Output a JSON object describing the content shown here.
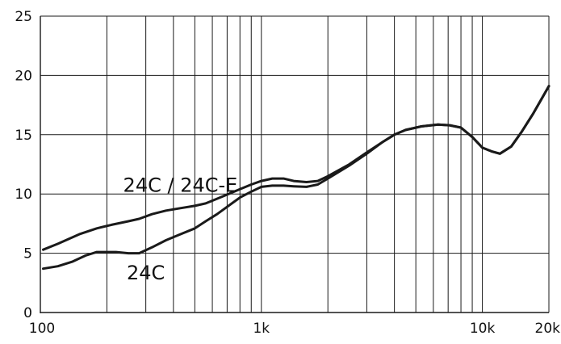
{
  "chart_data": {
    "type": "line",
    "x_scale": "log",
    "xlim": [
      100,
      20000
    ],
    "ylim": [
      0,
      25
    ],
    "grid": true,
    "x_gridlines": [
      100,
      200,
      300,
      400,
      500,
      600,
      700,
      800,
      900,
      1000,
      2000,
      3000,
      4000,
      5000,
      6000,
      7000,
      8000,
      9000,
      10000,
      20000
    ],
    "x_ticks": [
      {
        "value": 100,
        "label": "100"
      },
      {
        "value": 1000,
        "label": "1k"
      },
      {
        "value": 10000,
        "label": "10k"
      },
      {
        "value": 20000,
        "label": "20k"
      }
    ],
    "y_ticks": [
      {
        "value": 0,
        "label": "0"
      },
      {
        "value": 5,
        "label": "5"
      },
      {
        "value": 10,
        "label": "10"
      },
      {
        "value": 15,
        "label": "15"
      },
      {
        "value": 20,
        "label": "20"
      },
      {
        "value": 25,
        "label": "25"
      }
    ],
    "series": [
      {
        "name": "24C / 24C-E",
        "points": [
          [
            103,
            5.3
          ],
          [
            120,
            5.8
          ],
          [
            150,
            6.6
          ],
          [
            180,
            7.1
          ],
          [
            210,
            7.4
          ],
          [
            250,
            7.7
          ],
          [
            280,
            7.9
          ],
          [
            320,
            8.3
          ],
          [
            370,
            8.6
          ],
          [
            430,
            8.8
          ],
          [
            500,
            9.0
          ],
          [
            560,
            9.2
          ],
          [
            630,
            9.6
          ],
          [
            710,
            10.0
          ],
          [
            800,
            10.4
          ],
          [
            900,
            10.8
          ],
          [
            1000,
            11.1
          ],
          [
            1120,
            11.3
          ],
          [
            1260,
            11.3
          ],
          [
            1400,
            11.1
          ],
          [
            1600,
            11.0
          ],
          [
            1800,
            11.1
          ],
          [
            2000,
            11.5
          ],
          [
            2500,
            12.5
          ],
          [
            3000,
            13.5
          ],
          [
            3550,
            14.4
          ],
          [
            4000,
            15.0
          ],
          [
            4500,
            15.4
          ],
          [
            5300,
            15.7
          ],
          [
            6300,
            15.85
          ],
          [
            7100,
            15.8
          ],
          [
            8000,
            15.6
          ],
          [
            9000,
            14.8
          ],
          [
            10000,
            13.9
          ],
          [
            11000,
            13.6
          ],
          [
            12000,
            13.4
          ],
          [
            13500,
            14.0
          ],
          [
            15000,
            15.2
          ],
          [
            17000,
            16.8
          ],
          [
            20000,
            19.1
          ]
        ]
      },
      {
        "name": "24C",
        "points": [
          [
            103,
            3.7
          ],
          [
            120,
            3.9
          ],
          [
            140,
            4.3
          ],
          [
            160,
            4.8
          ],
          [
            180,
            5.1
          ],
          [
            200,
            5.1
          ],
          [
            220,
            5.1
          ],
          [
            250,
            5.0
          ],
          [
            280,
            5.0
          ],
          [
            320,
            5.5
          ],
          [
            370,
            6.1
          ],
          [
            430,
            6.6
          ],
          [
            500,
            7.1
          ],
          [
            560,
            7.7
          ],
          [
            630,
            8.3
          ],
          [
            710,
            9.0
          ],
          [
            800,
            9.7
          ],
          [
            900,
            10.2
          ],
          [
            1000,
            10.6
          ],
          [
            1120,
            10.7
          ],
          [
            1260,
            10.7
          ],
          [
            1400,
            10.65
          ],
          [
            1600,
            10.6
          ],
          [
            1800,
            10.8
          ],
          [
            2000,
            11.3
          ],
          [
            2500,
            12.4
          ],
          [
            3000,
            13.4
          ],
          [
            3550,
            14.4
          ],
          [
            4000,
            15.0
          ],
          [
            4500,
            15.4
          ],
          [
            5300,
            15.7
          ],
          [
            6300,
            15.85
          ],
          [
            7100,
            15.8
          ],
          [
            8000,
            15.6
          ],
          [
            9000,
            14.8
          ],
          [
            10000,
            13.9
          ],
          [
            11000,
            13.6
          ],
          [
            12000,
            13.4
          ],
          [
            13500,
            14.0
          ],
          [
            15000,
            15.2
          ],
          [
            17000,
            16.8
          ],
          [
            20000,
            19.1
          ]
        ]
      }
    ],
    "annotations": [
      {
        "text": "24C / 24C-E",
        "x": 430,
        "y": 10.2
      },
      {
        "text": "24C",
        "x": 300,
        "y": 2.8
      }
    ],
    "colors": {
      "line": "#1a1a1a",
      "grid": "#1a1a1a",
      "text": "#111111",
      "background": "#ffffff"
    }
  }
}
